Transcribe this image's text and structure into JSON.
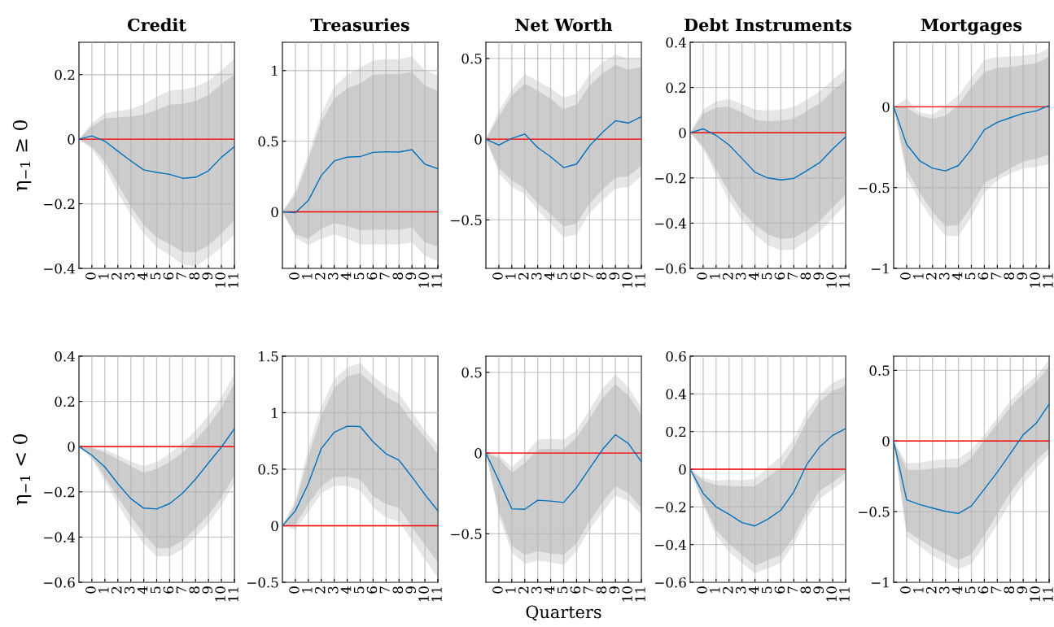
{
  "chart_data": [
    {
      "type": "line",
      "title": "Credit",
      "ylabel": "η$_{−1}$ ≥ 0",
      "x": [
        -1,
        0,
        1,
        2,
        3,
        4,
        5,
        6,
        7,
        8,
        9,
        10,
        11
      ],
      "xlim": [
        -1,
        11
      ],
      "xticks": [
        0,
        1,
        2,
        3,
        4,
        5,
        6,
        7,
        8,
        9,
        10,
        11
      ],
      "ylim": [
        -0.4,
        0.3
      ],
      "yticks": [
        -0.4,
        -0.2,
        0,
        0.2
      ],
      "grid": true,
      "ref_lines": [
        {
          "axis": "y",
          "value": 0,
          "color": "#ff0000"
        }
      ],
      "series": [
        {
          "color": "#e6e6e6",
          "values": [
            null,
            null,
            null,
            null,
            null,
            null,
            null,
            null,
            null,
            null,
            null,
            null,
            null
          ],
          "upper": [
            0,
            0.05,
            0.08,
            0.087,
            0.093,
            0.108,
            0.131,
            0.15,
            0.154,
            0.162,
            0.181,
            0.214,
            0.249
          ],
          "lower": [
            0,
            -0.031,
            -0.086,
            -0.166,
            -0.233,
            -0.292,
            -0.334,
            -0.359,
            -0.388,
            -0.394,
            -0.367,
            -0.334,
            -0.296
          ]
        },
        {
          "color": "#cccccc",
          "values": [
            null,
            null,
            null,
            null,
            null,
            null,
            null,
            null,
            null,
            null,
            null,
            null,
            null
          ],
          "upper": [
            0,
            0.04,
            0.064,
            0.067,
            0.07,
            0.076,
            0.091,
            0.107,
            0.109,
            0.118,
            0.137,
            0.171,
            0.2
          ],
          "lower": [
            0,
            -0.023,
            -0.069,
            -0.14,
            -0.208,
            -0.266,
            -0.304,
            -0.325,
            -0.349,
            -0.35,
            -0.329,
            -0.292,
            -0.25
          ]
        },
        {
          "color": "#0072bd",
          "values": [
            0,
            0.01,
            -0.006,
            -0.037,
            -0.067,
            -0.095,
            -0.103,
            -0.109,
            -0.121,
            -0.118,
            -0.098,
            -0.056,
            -0.023
          ]
        }
      ]
    },
    {
      "type": "line",
      "title": "Treasuries",
      "x": [
        -1,
        0,
        1,
        2,
        3,
        4,
        5,
        6,
        7,
        8,
        9,
        10,
        11
      ],
      "xlim": [
        -1,
        11
      ],
      "xticks": [
        0,
        1,
        2,
        3,
        4,
        5,
        6,
        7,
        8,
        9,
        10,
        11
      ],
      "ylim": [
        -0.4,
        1.2
      ],
      "yticks": [
        0,
        0.5,
        1
      ],
      "grid": true,
      "ref_lines": [
        {
          "axis": "y",
          "value": 0,
          "color": "#ff0000"
        }
      ],
      "series": [
        {
          "color": "#e6e6e6",
          "values": [
            null,
            null,
            null,
            null,
            null,
            null,
            null,
            null,
            null,
            null,
            null,
            null,
            null
          ],
          "upper": [
            0,
            0.15,
            0.41,
            0.69,
            0.885,
            0.97,
            1.02,
            1.07,
            1.08,
            1.08,
            1.1,
            1.0,
            0.965
          ],
          "lower": [
            0,
            -0.18,
            -0.236,
            -0.19,
            -0.16,
            -0.19,
            -0.23,
            -0.23,
            -0.23,
            -0.23,
            -0.216,
            -0.31,
            -0.35
          ]
        },
        {
          "color": "#cccccc",
          "values": [
            null,
            null,
            null,
            null,
            null,
            null,
            null,
            null,
            null,
            null,
            null,
            null,
            null
          ],
          "upper": [
            0,
            0.12,
            0.37,
            0.64,
            0.8,
            0.875,
            0.91,
            0.97,
            0.975,
            0.975,
            0.99,
            0.895,
            0.856
          ],
          "lower": [
            0,
            -0.16,
            -0.19,
            -0.12,
            -0.08,
            -0.1,
            -0.13,
            -0.126,
            -0.126,
            -0.126,
            -0.11,
            -0.216,
            -0.245
          ]
        },
        {
          "color": "#0072bd",
          "values": [
            0,
            -0.006,
            0.08,
            0.257,
            0.36,
            0.387,
            0.391,
            0.421,
            0.425,
            0.423,
            0.44,
            0.337,
            0.305
          ]
        }
      ]
    },
    {
      "type": "line",
      "title": "Net Worth",
      "x": [
        -1,
        0,
        1,
        2,
        3,
        4,
        5,
        6,
        7,
        8,
        9,
        10,
        11
      ],
      "xlim": [
        -1,
        11
      ],
      "xticks": [
        0,
        1,
        2,
        3,
        4,
        5,
        6,
        7,
        8,
        9,
        10,
        11
      ],
      "ylim": [
        -0.8,
        0.6
      ],
      "yticks": [
        -0.5,
        0,
        0.5
      ],
      "grid": true,
      "ref_lines": [
        {
          "axis": "y",
          "value": 0,
          "color": "#ff0000"
        }
      ],
      "series": [
        {
          "color": "#e6e6e6",
          "values": [
            null,
            null,
            null,
            null,
            null,
            null,
            null,
            null,
            null,
            null,
            null,
            null,
            null
          ],
          "upper": [
            0,
            0.173,
            0.307,
            0.403,
            0.36,
            0.315,
            0.257,
            0.282,
            0.4,
            0.475,
            0.525,
            0.495,
            0.5
          ],
          "lower": [
            0,
            -0.213,
            -0.297,
            -0.339,
            -0.44,
            -0.523,
            -0.607,
            -0.59,
            -0.456,
            -0.38,
            -0.305,
            -0.297,
            -0.23
          ]
        },
        {
          "color": "#cccccc",
          "values": [
            null,
            null,
            null,
            null,
            null,
            null,
            null,
            null,
            null,
            null,
            null,
            null,
            null
          ],
          "upper": [
            0,
            0.139,
            0.27,
            0.344,
            0.3,
            0.25,
            0.186,
            0.215,
            0.332,
            0.408,
            0.46,
            0.43,
            0.445
          ],
          "lower": [
            0,
            -0.18,
            -0.255,
            -0.305,
            -0.398,
            -0.465,
            -0.54,
            -0.523,
            -0.398,
            -0.314,
            -0.238,
            -0.23,
            -0.163
          ]
        },
        {
          "color": "#0072bd",
          "values": [
            0,
            -0.037,
            0.005,
            0.032,
            -0.052,
            -0.109,
            -0.176,
            -0.154,
            -0.042,
            0.042,
            0.114,
            0.1,
            0.139
          ]
        }
      ]
    },
    {
      "type": "line",
      "title": "Debt Instruments",
      "x": [
        -1,
        0,
        1,
        2,
        3,
        4,
        5,
        6,
        7,
        8,
        9,
        10,
        11
      ],
      "xlim": [
        -1,
        11
      ],
      "xticks": [
        0,
        1,
        2,
        3,
        4,
        5,
        6,
        7,
        8,
        9,
        10,
        11
      ],
      "ylim": [
        -0.6,
        0.4
      ],
      "yticks": [
        -0.6,
        -0.4,
        -0.2,
        0,
        0.2,
        0.4
      ],
      "grid": true,
      "ref_lines": [
        {
          "axis": "y",
          "value": 0,
          "color": "#ff0000"
        }
      ],
      "series": [
        {
          "color": "#e6e6e6",
          "values": [
            null,
            null,
            null,
            null,
            null,
            null,
            null,
            null,
            null,
            null,
            null,
            null,
            null
          ],
          "upper": [
            0,
            0.102,
            0.138,
            0.15,
            0.126,
            0.102,
            0.098,
            0.102,
            0.114,
            0.146,
            0.182,
            0.234,
            0.282
          ],
          "lower": [
            0,
            -0.072,
            -0.186,
            -0.3,
            -0.384,
            -0.45,
            -0.498,
            -0.52,
            -0.516,
            -0.48,
            -0.438,
            -0.378,
            -0.318
          ]
        },
        {
          "color": "#cccccc",
          "values": [
            null,
            null,
            null,
            null,
            null,
            null,
            null,
            null,
            null,
            null,
            null,
            null,
            null
          ],
          "upper": [
            0,
            0.084,
            0.11,
            0.116,
            0.09,
            0.058,
            0.05,
            0.054,
            0.062,
            0.096,
            0.13,
            0.186,
            0.234
          ],
          "lower": [
            0,
            -0.06,
            -0.162,
            -0.264,
            -0.348,
            -0.408,
            -0.45,
            -0.47,
            -0.465,
            -0.432,
            -0.39,
            -0.33,
            -0.274
          ]
        },
        {
          "color": "#0072bd",
          "values": [
            0,
            0.017,
            -0.012,
            -0.054,
            -0.114,
            -0.175,
            -0.2,
            -0.209,
            -0.202,
            -0.168,
            -0.132,
            -0.072,
            -0.018
          ]
        }
      ]
    },
    {
      "type": "line",
      "title": "Mortgages",
      "x": [
        -1,
        0,
        1,
        2,
        3,
        4,
        5,
        6,
        7,
        8,
        9,
        10,
        11
      ],
      "xlim": [
        -1,
        11
      ],
      "xticks": [
        0,
        1,
        2,
        3,
        4,
        5,
        6,
        7,
        8,
        9,
        10,
        11
      ],
      "ylim": [
        -1,
        0.4
      ],
      "yticks": [
        -1,
        -0.5,
        0
      ],
      "grid": true,
      "ref_lines": [
        {
          "axis": "y",
          "value": 0,
          "color": "#ff0000"
        }
      ],
      "series": [
        {
          "color": "#e6e6e6",
          "values": [
            null,
            null,
            null,
            null,
            null,
            null,
            null,
            null,
            null,
            null,
            null,
            null,
            null
          ],
          "upper": [
            0,
            0.05,
            -0.037,
            -0.048,
            0.008,
            0.072,
            0.18,
            0.29,
            0.31,
            0.31,
            0.318,
            0.326,
            0.365
          ],
          "lower": [
            0,
            -0.43,
            -0.58,
            -0.7,
            -0.8,
            -0.8,
            -0.68,
            -0.53,
            -0.455,
            -0.413,
            -0.38,
            -0.371,
            -0.355
          ]
        },
        {
          "color": "#cccccc",
          "values": [
            null,
            null,
            null,
            null,
            null,
            null,
            null,
            null,
            null,
            null,
            null,
            null,
            null
          ],
          "upper": [
            0,
            -0.003,
            -0.054,
            -0.075,
            -0.054,
            0.013,
            0.122,
            0.214,
            0.242,
            0.247,
            0.26,
            0.27,
            0.31
          ],
          "lower": [
            0,
            -0.388,
            -0.53,
            -0.65,
            -0.74,
            -0.73,
            -0.614,
            -0.47,
            -0.43,
            -0.38,
            -0.338,
            -0.321,
            -0.296
          ]
        },
        {
          "color": "#0072bd",
          "values": [
            0,
            -0.232,
            -0.333,
            -0.38,
            -0.396,
            -0.363,
            -0.263,
            -0.142,
            -0.095,
            -0.067,
            -0.04,
            -0.025,
            0.008
          ]
        }
      ]
    },
    {
      "type": "line",
      "ylabel": "η$_{−1}$ < 0",
      "x": [
        -1,
        0,
        1,
        2,
        3,
        4,
        5,
        6,
        7,
        8,
        9,
        10,
        11
      ],
      "xlim": [
        -1,
        11
      ],
      "xticks": [
        0,
        1,
        2,
        3,
        4,
        5,
        6,
        7,
        8,
        9,
        10,
        11
      ],
      "ylim": [
        -0.6,
        0.4
      ],
      "yticks": [
        -0.6,
        -0.4,
        -0.2,
        0,
        0.2,
        0.4
      ],
      "grid": true,
      "ref_lines": [
        {
          "axis": "y",
          "value": 0,
          "color": "#ff0000"
        }
      ],
      "series": [
        {
          "color": "#e6e6e6",
          "values": [
            null,
            null,
            null,
            null,
            null,
            null,
            null,
            null,
            null,
            null,
            null,
            null,
            null
          ],
          "upper": [
            0,
            -0.004,
            -0.014,
            -0.038,
            -0.066,
            -0.086,
            -0.068,
            -0.032,
            0.016,
            0.07,
            0.138,
            0.22,
            0.322
          ],
          "lower": [
            0,
            -0.056,
            -0.152,
            -0.254,
            -0.35,
            -0.429,
            -0.486,
            -0.486,
            -0.453,
            -0.399,
            -0.339,
            -0.26,
            -0.164
          ]
        },
        {
          "color": "#cccccc",
          "values": [
            null,
            null,
            null,
            null,
            null,
            null,
            null,
            null,
            null,
            null,
            null,
            null,
            null
          ],
          "upper": [
            0,
            -0.006,
            -0.026,
            -0.056,
            -0.086,
            -0.116,
            -0.098,
            -0.068,
            -0.026,
            0.028,
            0.094,
            0.172,
            0.28
          ],
          "lower": [
            0,
            -0.044,
            -0.134,
            -0.224,
            -0.308,
            -0.386,
            -0.45,
            -0.45,
            -0.416,
            -0.363,
            -0.302,
            -0.224,
            -0.128
          ]
        },
        {
          "color": "#0072bd",
          "values": [
            0,
            -0.038,
            -0.09,
            -0.164,
            -0.23,
            -0.272,
            -0.276,
            -0.252,
            -0.206,
            -0.144,
            -0.072,
            -0.002,
            0.079
          ]
        }
      ]
    },
    {
      "type": "line",
      "x": [
        -1,
        0,
        1,
        2,
        3,
        4,
        5,
        6,
        7,
        8,
        9,
        10,
        11
      ],
      "xlim": [
        -1,
        11
      ],
      "xticks": [
        0,
        1,
        2,
        3,
        4,
        5,
        6,
        7,
        8,
        9,
        10,
        11
      ],
      "ylim": [
        -0.5,
        1.5
      ],
      "yticks": [
        -0.5,
        0,
        0.5,
        1,
        1.5
      ],
      "grid": true,
      "ref_lines": [
        {
          "axis": "y",
          "value": 0,
          "color": "#ff0000"
        }
      ],
      "series": [
        {
          "color": "#e6e6e6",
          "values": [
            null,
            null,
            null,
            null,
            null,
            null,
            null,
            null,
            null,
            null,
            null,
            null,
            null
          ],
          "upper": [
            0,
            0.228,
            0.683,
            1.055,
            1.295,
            1.4,
            1.44,
            1.32,
            1.235,
            1.168,
            1.007,
            0.84,
            0.707
          ],
          "lower": [
            0,
            -0.036,
            0.12,
            0.288,
            0.353,
            0.353,
            0.312,
            0.168,
            0.072,
            0.036,
            -0.132,
            -0.3,
            -0.456
          ]
        },
        {
          "color": "#cccccc",
          "values": [
            null,
            null,
            null,
            null,
            null,
            null,
            null,
            null,
            null,
            null,
            null,
            null,
            null
          ],
          "upper": [
            0,
            0.19,
            0.61,
            0.97,
            1.22,
            1.32,
            1.35,
            1.25,
            1.14,
            1.08,
            0.923,
            0.78,
            0.635
          ],
          "lower": [
            0,
            0.012,
            0.19,
            0.35,
            0.43,
            0.436,
            0.41,
            0.264,
            0.19,
            0.16,
            -0.012,
            -0.168,
            -0.324
          ]
        },
        {
          "color": "#0072bd",
          "values": [
            0,
            0.132,
            0.372,
            0.683,
            0.827,
            0.88,
            0.878,
            0.743,
            0.636,
            0.58,
            0.432,
            0.276,
            0.132
          ]
        }
      ]
    },
    {
      "type": "line",
      "xlabel": "Quarters",
      "x": [
        -1,
        0,
        1,
        2,
        3,
        4,
        5,
        6,
        7,
        8,
        9,
        10,
        11
      ],
      "xlim": [
        -1,
        11
      ],
      "xticks": [
        0,
        1,
        2,
        3,
        4,
        5,
        6,
        7,
        8,
        9,
        10,
        11
      ],
      "ylim": [
        -0.8,
        0.6
      ],
      "yticks": [
        -0.5,
        0,
        0.5
      ],
      "grid": true,
      "ref_lines": [
        {
          "axis": "y",
          "value": 0,
          "color": "#ff0000"
        }
      ],
      "series": [
        {
          "color": "#e6e6e6",
          "values": [
            null,
            null,
            null,
            null,
            null,
            null,
            null,
            null,
            null,
            null,
            null,
            null,
            null
          ],
          "upper": [
            0,
            -0.012,
            -0.087,
            -0.012,
            0.084,
            0.089,
            0.084,
            0.14,
            0.266,
            0.4,
            0.487,
            0.408,
            0.282
          ],
          "lower": [
            0,
            -0.39,
            -0.617,
            -0.684,
            -0.667,
            -0.676,
            -0.692,
            -0.608,
            -0.474,
            -0.365,
            -0.264,
            -0.297,
            -0.381
          ]
        },
        {
          "color": "#cccccc",
          "values": [
            null,
            null,
            null,
            null,
            null,
            null,
            null,
            null,
            null,
            null,
            null,
            null,
            null
          ],
          "upper": [
            0,
            -0.029,
            -0.121,
            -0.062,
            0.022,
            0.027,
            0.022,
            0.097,
            0.215,
            0.341,
            0.425,
            0.358,
            0.232
          ],
          "lower": [
            0,
            -0.356,
            -0.575,
            -0.629,
            -0.608,
            -0.622,
            -0.629,
            -0.558,
            -0.424,
            -0.306,
            -0.205,
            -0.247,
            -0.34
          ]
        },
        {
          "color": "#0072bd",
          "values": [
            0,
            -0.171,
            -0.345,
            -0.348,
            -0.292,
            -0.297,
            -0.306,
            -0.213,
            -0.096,
            0.022,
            0.114,
            0.059,
            -0.054
          ]
        }
      ]
    },
    {
      "type": "line",
      "x": [
        -1,
        0,
        1,
        2,
        3,
        4,
        5,
        6,
        7,
        8,
        9,
        10,
        11
      ],
      "xlim": [
        -1,
        11
      ],
      "xticks": [
        0,
        1,
        2,
        3,
        4,
        5,
        6,
        7,
        8,
        9,
        10,
        11
      ],
      "ylim": [
        -0.6,
        0.6
      ],
      "yticks": [
        -0.6,
        -0.4,
        -0.2,
        0,
        0.2,
        0.4,
        0.6
      ],
      "grid": true,
      "ref_lines": [
        {
          "axis": "y",
          "value": 0,
          "color": "#ff0000"
        }
      ],
      "series": [
        {
          "color": "#e6e6e6",
          "values": [
            null,
            null,
            null,
            null,
            null,
            null,
            null,
            null,
            null,
            null,
            null,
            null,
            null
          ],
          "upper": [
            0,
            -0.048,
            -0.062,
            -0.055,
            -0.058,
            -0.051,
            0.01,
            0.068,
            0.162,
            0.3,
            0.394,
            0.459,
            0.491
          ],
          "lower": [
            0,
            -0.193,
            -0.352,
            -0.439,
            -0.497,
            -0.552,
            -0.526,
            -0.497,
            -0.396,
            -0.258,
            -0.157,
            -0.106,
            -0.055
          ]
        },
        {
          "color": "#cccccc",
          "values": [
            null,
            null,
            null,
            null,
            null,
            null,
            null,
            null,
            null,
            null,
            null,
            null,
            null
          ],
          "upper": [
            0,
            -0.062,
            -0.084,
            -0.088,
            -0.091,
            -0.091,
            -0.041,
            0.01,
            0.119,
            0.257,
            0.358,
            0.416,
            0.445
          ],
          "lower": [
            0,
            -0.178,
            -0.323,
            -0.396,
            -0.454,
            -0.512,
            -0.483,
            -0.454,
            -0.359,
            -0.222,
            -0.113,
            -0.07,
            -0.019
          ]
        },
        {
          "color": "#0072bd",
          "values": [
            0,
            -0.128,
            -0.2,
            -0.239,
            -0.283,
            -0.301,
            -0.265,
            -0.217,
            -0.12,
            0.025,
            0.119,
            0.18,
            0.216
          ]
        }
      ]
    },
    {
      "type": "line",
      "x": [
        -1,
        0,
        1,
        2,
        3,
        4,
        5,
        6,
        7,
        8,
        9,
        10,
        11
      ],
      "xlim": [
        -1,
        11
      ],
      "xticks": [
        0,
        1,
        2,
        3,
        4,
        5,
        6,
        7,
        8,
        9,
        10,
        11
      ],
      "ylim": [
        -1,
        0.6
      ],
      "yticks": [
        -1,
        -0.5,
        0,
        0.5
      ],
      "grid": true,
      "ref_lines": [
        {
          "axis": "y",
          "value": 0,
          "color": "#ff0000"
        }
      ],
      "series": [
        {
          "color": "#e6e6e6",
          "values": [
            null,
            null,
            null,
            null,
            null,
            null,
            null,
            null,
            null,
            null,
            null,
            null,
            null
          ],
          "upper": [
            0,
            -0.158,
            -0.154,
            -0.138,
            -0.129,
            -0.125,
            -0.062,
            0.044,
            0.163,
            0.285,
            0.381,
            0.458,
            0.573
          ],
          "lower": [
            0,
            -0.677,
            -0.744,
            -0.812,
            -0.86,
            -0.908,
            -0.869,
            -0.735,
            -0.59,
            -0.437,
            -0.302,
            -0.196,
            -0.09
          ]
        },
        {
          "color": "#cccccc",
          "values": [
            null,
            null,
            null,
            null,
            null,
            null,
            null,
            null,
            null,
            null,
            null,
            null,
            null
          ],
          "upper": [
            0,
            -0.202,
            -0.206,
            -0.196,
            -0.187,
            -0.187,
            -0.119,
            0.006,
            0.121,
            0.24,
            0.337,
            0.419,
            0.525
          ],
          "lower": [
            0,
            -0.638,
            -0.696,
            -0.754,
            -0.798,
            -0.844,
            -0.802,
            -0.667,
            -0.513,
            -0.369,
            -0.244,
            -0.138,
            -0.052
          ]
        },
        {
          "color": "#0072bd",
          "values": [
            0,
            -0.417,
            -0.45,
            -0.475,
            -0.498,
            -0.513,
            -0.46,
            -0.34,
            -0.221,
            -0.09,
            0.044,
            0.125,
            0.26
          ]
        }
      ]
    }
  ]
}
